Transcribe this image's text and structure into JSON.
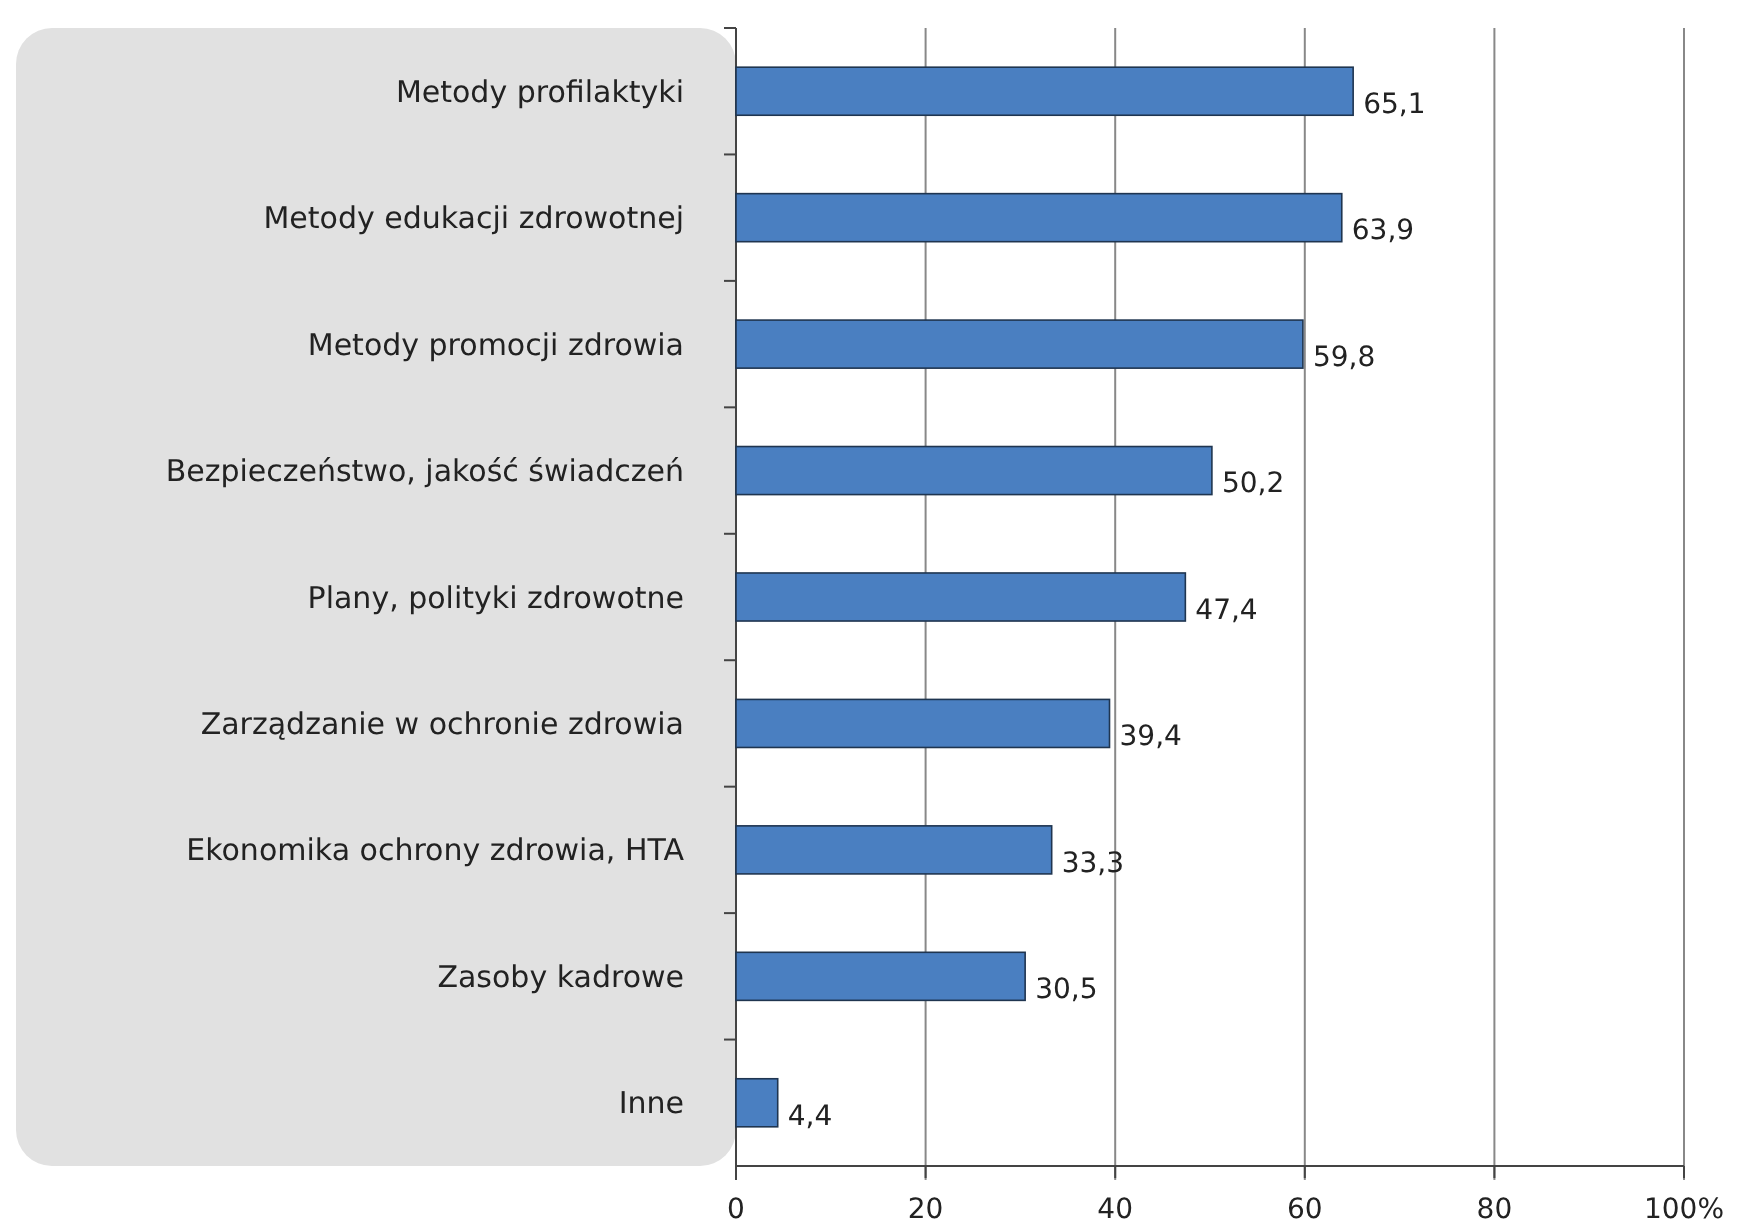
{
  "chart_data": {
    "type": "bar",
    "orientation": "horizontal",
    "categories": [
      "Metody profilaktyki",
      "Metody edukacji zdrowotnej",
      "Metody promocji zdrowia",
      "Bezpieczeństwo, jakość świadczeń",
      "Plany, polityki zdrowotne",
      "Zarządzanie w ochronie zdrowia",
      "Ekonomika ochrony zdrowia, HTA",
      "Zasoby kadrowe",
      "Inne"
    ],
    "values": [
      65.1,
      63.9,
      59.8,
      50.2,
      47.4,
      39.4,
      33.3,
      30.5,
      4.4
    ],
    "value_labels": [
      "65,1",
      "63,9",
      "59,8",
      "50,2",
      "47,4",
      "39,4",
      "33,3",
      "30,5",
      "4,4"
    ],
    "color": "#4a7fc1",
    "xlim": [
      0,
      100
    ],
    "xticks": [
      0,
      20,
      40,
      60,
      80,
      {
        "value": 100,
        "label": "100%"
      }
    ],
    "grid": "x"
  }
}
